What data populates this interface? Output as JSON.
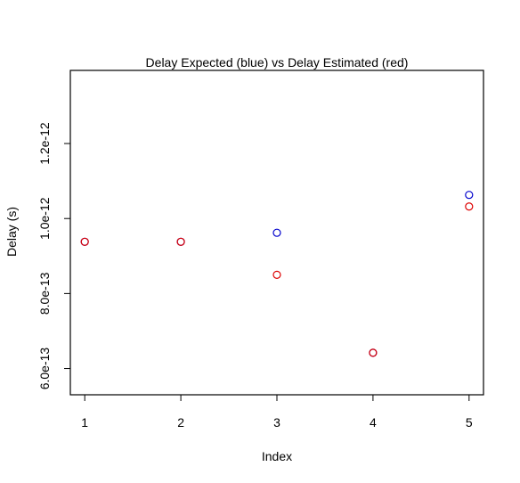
{
  "chart_data": {
    "type": "scatter",
    "title": "Delay Expected (blue) vs Delay Estimated (red)",
    "xlabel": "Index",
    "ylabel": "Delay (s)",
    "x": [
      1,
      2,
      3,
      4,
      5
    ],
    "xlim": [
      0.85,
      5.15
    ],
    "ylim": [
      5.3e-13,
      1.395e-12
    ],
    "x_ticks": [
      {
        "value": 1,
        "label": "1"
      },
      {
        "value": 2,
        "label": "2"
      },
      {
        "value": 3,
        "label": "3"
      },
      {
        "value": 4,
        "label": "4"
      },
      {
        "value": 5,
        "label": "5"
      }
    ],
    "y_ticks": [
      {
        "value": 6e-13,
        "label": "6.0e-13"
      },
      {
        "value": 8e-13,
        "label": "8.0e-13"
      },
      {
        "value": 1e-12,
        "label": "1.0e-12"
      },
      {
        "value": 1.2e-12,
        "label": "1.2e-12"
      }
    ],
    "grid": false,
    "series": [
      {
        "color": "#0000cc",
        "marker": "open-circle",
        "values": [
          9.38e-13,
          9.38e-13,
          9.62e-13,
          6.42e-13,
          1.063e-12
        ]
      },
      {
        "color": "#dd0000",
        "marker": "open-circle",
        "values": [
          9.38e-13,
          9.38e-13,
          8.5e-13,
          6.42e-13,
          1.032e-12
        ]
      }
    ]
  }
}
